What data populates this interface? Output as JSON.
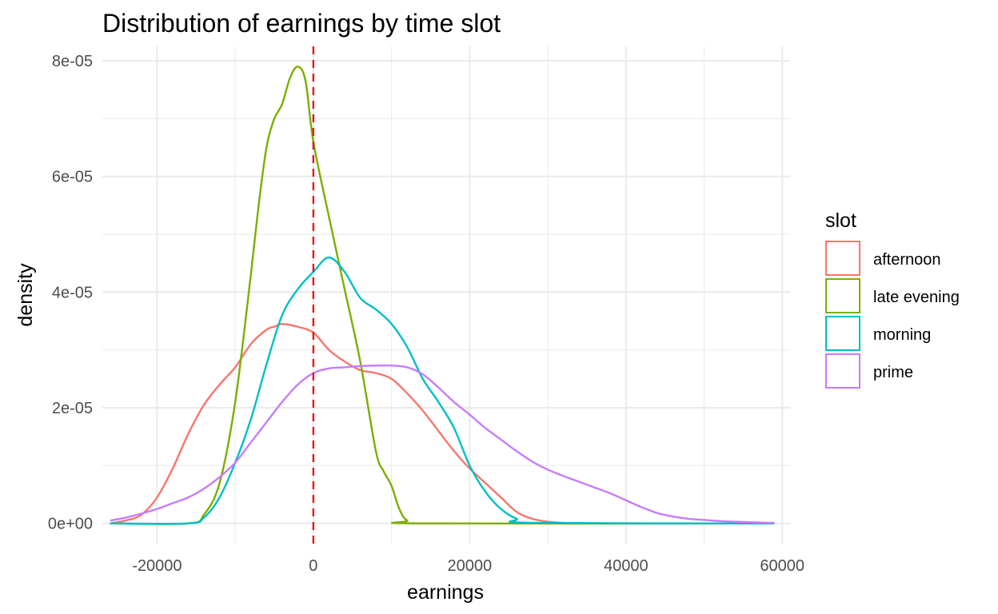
{
  "chart_data": {
    "type": "line",
    "subtype": "density",
    "title": "Distribution of earnings by time slot",
    "xlabel": "earnings",
    "ylabel": "density",
    "xlim": [
      -27000,
      61000
    ],
    "ylim": [
      -3.5e-06,
      8.25e-05
    ],
    "x_ticks": [
      -20000,
      0,
      20000,
      40000,
      60000
    ],
    "x_tick_labels": [
      "-20000",
      "0",
      "20000",
      "40000",
      "60000"
    ],
    "y_ticks": [
      0,
      2e-05,
      4e-05,
      6e-05,
      8e-05
    ],
    "y_tick_labels": [
      "0e+00",
      "2e-05",
      "4e-05",
      "6e-05",
      "8e-05"
    ],
    "grid": true,
    "legend": {
      "title": "slot",
      "position": "right"
    },
    "reference_line": {
      "axis": "x",
      "value": 0,
      "style": "dashed",
      "color": "#e31a1c"
    },
    "series": [
      {
        "name": "afternoon",
        "color": "#F8766D",
        "x": [
          -26000,
          -24000,
          -22000,
          -20000,
          -18000,
          -16000,
          -14000,
          -12000,
          -10000,
          -8000,
          -6000,
          -5000,
          -4000,
          -2000,
          0,
          2000,
          4000,
          6000,
          8000,
          10000,
          12000,
          14000,
          16000,
          18000,
          20000,
          22000,
          24000,
          26000,
          28000,
          30000,
          32000,
          34000,
          36000,
          59000
        ],
        "y": [
          0,
          5e-07,
          1.5e-06,
          4.5e-06,
          9.5e-06,
          1.55e-05,
          2.05e-05,
          2.4e-05,
          2.7e-05,
          3.1e-05,
          3.35e-05,
          3.4e-05,
          3.45e-05,
          3.4e-05,
          3.3e-05,
          3e-05,
          2.8e-05,
          2.65e-05,
          2.6e-05,
          2.5e-05,
          2.25e-05,
          1.95e-05,
          1.6e-05,
          1.25e-05,
          9.5e-06,
          7e-06,
          4.5e-06,
          2e-06,
          8e-07,
          3e-07,
          1e-07,
          0,
          0,
          0
        ]
      },
      {
        "name": "late evening",
        "color": "#7CAE00",
        "x": [
          -26000,
          -16000,
          -14000,
          -12000,
          -10000,
          -8000,
          -7000,
          -6000,
          -5000,
          -4000,
          -3000,
          -2000,
          -1000,
          0,
          2000,
          4000,
          6000,
          8000,
          9000,
          10000,
          11000,
          12000,
          14000,
          59000
        ],
        "y": [
          0,
          0,
          1.5e-06,
          7e-06,
          2.1e-05,
          4.3e-05,
          5.5e-05,
          6.5e-05,
          7e-05,
          7.25e-05,
          7.7e-05,
          7.9e-05,
          7.65e-05,
          6.6e-05,
          5.3e-05,
          4.05e-05,
          2.8e-05,
          1.25e-05,
          9e-06,
          6.5e-06,
          2.5e-06,
          5e-07,
          0,
          0
        ]
      },
      {
        "name": "morning",
        "color": "#00BFC4",
        "x": [
          -26000,
          -16000,
          -14000,
          -12000,
          -10000,
          -8000,
          -6000,
          -4000,
          -2000,
          0,
          2000,
          4000,
          6000,
          8000,
          10000,
          12000,
          14000,
          16000,
          18000,
          20000,
          22000,
          24000,
          26000,
          28000,
          59000
        ],
        "y": [
          0,
          0,
          1e-06,
          4.5e-06,
          1.05e-05,
          1.8e-05,
          2.75e-05,
          3.6e-05,
          4.05e-05,
          4.35e-05,
          4.6e-05,
          4.35e-05,
          3.9e-05,
          3.7e-05,
          3.45e-05,
          3.05e-05,
          2.5e-05,
          2.1e-05,
          1.65e-05,
          1e-05,
          5.5e-06,
          2.5e-06,
          8e-07,
          1e-07,
          0
        ]
      },
      {
        "name": "prime",
        "color": "#C77CFF",
        "x": [
          -26000,
          -24000,
          -22000,
          -20000,
          -18000,
          -16000,
          -14000,
          -12000,
          -10000,
          -8000,
          -6000,
          -4000,
          -2000,
          0,
          2000,
          4000,
          6000,
          8000,
          10000,
          12000,
          14000,
          16000,
          18000,
          20000,
          22000,
          24000,
          26000,
          28000,
          30000,
          32000,
          34000,
          36000,
          38000,
          40000,
          42000,
          44000,
          46000,
          48000,
          50000,
          52000,
          54000,
          56000,
          58000,
          59000
        ],
        "y": [
          5e-07,
          1e-06,
          1.7e-06,
          2.5e-06,
          3.5e-06,
          4.5e-06,
          6e-06,
          8e-06,
          1.05e-05,
          1.4e-05,
          1.75e-05,
          2.1e-05,
          2.4e-05,
          2.6e-05,
          2.68e-05,
          2.7e-05,
          2.72e-05,
          2.73e-05,
          2.73e-05,
          2.7e-05,
          2.58e-05,
          2.35e-05,
          2.1e-05,
          1.88e-05,
          1.65e-05,
          1.45e-05,
          1.25e-05,
          1.07e-05,
          9.3e-06,
          8.2e-06,
          7.2e-06,
          6.2e-06,
          5.2e-06,
          4e-06,
          2.8e-06,
          1.8e-06,
          1.2e-06,
          8e-07,
          6e-07,
          4e-07,
          3e-07,
          2e-07,
          1e-07,
          1e-07
        ]
      }
    ]
  }
}
